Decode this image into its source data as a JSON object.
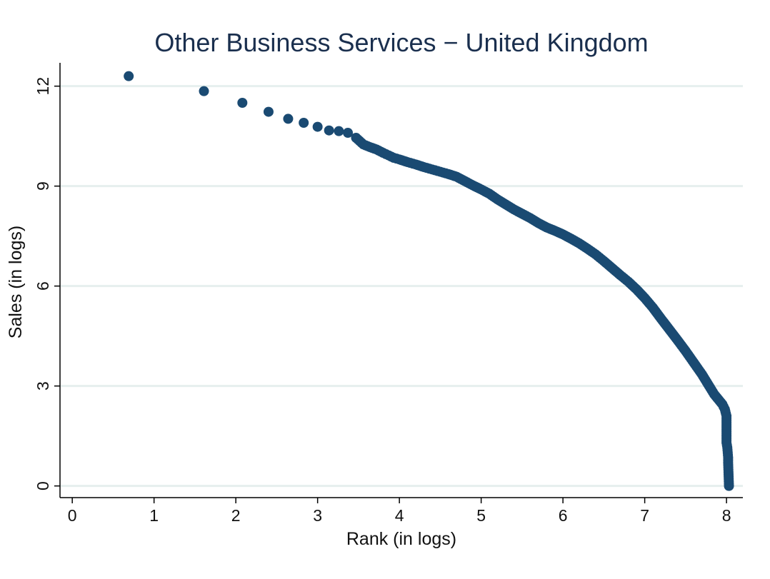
{
  "chart_data": {
    "type": "scatter",
    "title": "Other Business Services − United Kingdom",
    "xlabel": "Rank (in logs)",
    "ylabel": "Sales (in logs)",
    "xlim": [
      -0.15,
      8.2
    ],
    "ylim": [
      -0.35,
      12.7
    ],
    "xticks": [
      0,
      1,
      2,
      3,
      4,
      5,
      6,
      7,
      8
    ],
    "yticks": [
      0,
      3,
      6,
      9,
      12
    ],
    "grid": true,
    "legend": "none",
    "colors": {
      "marker": "#1a4a72",
      "grid": "#e6efee",
      "axis": "#000000",
      "title": "#1a2f4e"
    },
    "points": [
      [
        0.69,
        12.3
      ],
      [
        1.61,
        11.85
      ],
      [
        2.08,
        11.5
      ],
      [
        2.4,
        11.23
      ],
      [
        2.64,
        11.02
      ],
      [
        2.83,
        10.9
      ],
      [
        3.0,
        10.78
      ],
      [
        3.14,
        10.67
      ],
      [
        3.26,
        10.65
      ],
      [
        3.37,
        10.6
      ],
      [
        3.47,
        10.45
      ],
      [
        3.56,
        10.25
      ],
      [
        3.64,
        10.17
      ],
      [
        3.72,
        10.1
      ],
      [
        3.8,
        10.0
      ],
      [
        3.87,
        9.92
      ],
      [
        3.93,
        9.85
      ],
      [
        4.0,
        9.8
      ],
      [
        4.1,
        9.72
      ],
      [
        4.2,
        9.65
      ],
      [
        4.3,
        9.57
      ],
      [
        4.4,
        9.5
      ],
      [
        4.5,
        9.43
      ],
      [
        4.6,
        9.36
      ],
      [
        4.7,
        9.28
      ],
      [
        4.8,
        9.15
      ],
      [
        4.9,
        9.02
      ],
      [
        5.0,
        8.9
      ],
      [
        5.1,
        8.77
      ],
      [
        5.2,
        8.6
      ],
      [
        5.3,
        8.45
      ],
      [
        5.4,
        8.3
      ],
      [
        5.5,
        8.17
      ],
      [
        5.6,
        8.04
      ],
      [
        5.7,
        7.89
      ],
      [
        5.8,
        7.76
      ],
      [
        5.9,
        7.66
      ],
      [
        6.0,
        7.55
      ],
      [
        6.1,
        7.42
      ],
      [
        6.2,
        7.28
      ],
      [
        6.3,
        7.12
      ],
      [
        6.4,
        6.95
      ],
      [
        6.5,
        6.75
      ],
      [
        6.6,
        6.54
      ],
      [
        6.7,
        6.33
      ],
      [
        6.8,
        6.13
      ],
      [
        6.9,
        5.9
      ],
      [
        7.0,
        5.64
      ],
      [
        7.1,
        5.35
      ],
      [
        7.2,
        5.02
      ],
      [
        7.3,
        4.7
      ],
      [
        7.4,
        4.38
      ],
      [
        7.5,
        4.05
      ],
      [
        7.6,
        3.7
      ],
      [
        7.7,
        3.35
      ],
      [
        7.8,
        2.95
      ],
      [
        7.85,
        2.75
      ],
      [
        7.9,
        2.6
      ],
      [
        7.95,
        2.45
      ],
      [
        7.98,
        2.3
      ],
      [
        8.0,
        2.1
      ],
      [
        8.0,
        1.9
      ],
      [
        8.0,
        1.7
      ],
      [
        8.0,
        1.5
      ],
      [
        8.0,
        1.3
      ],
      [
        8.01,
        1.15
      ],
      [
        8.02,
        0.85
      ],
      [
        8.02,
        0.7
      ],
      [
        8.03,
        0.0
      ]
    ]
  }
}
